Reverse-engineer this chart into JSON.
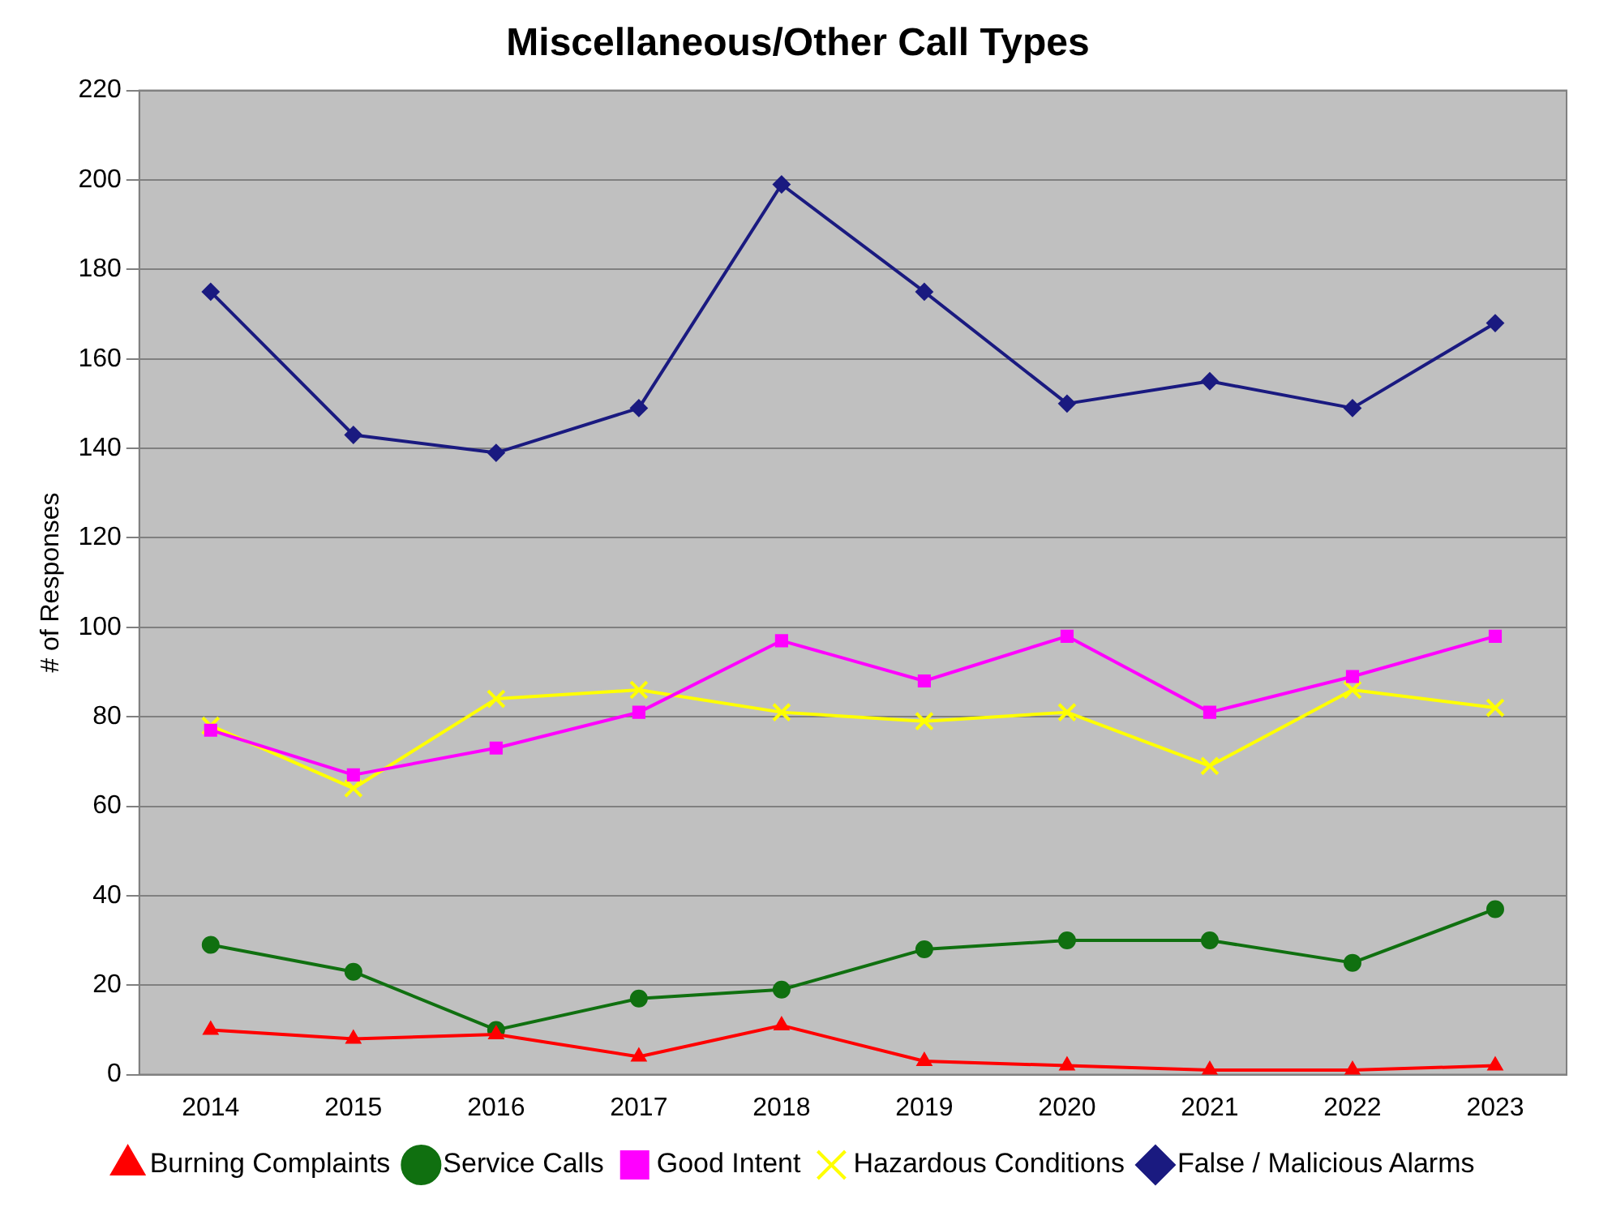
{
  "chart_data": {
    "type": "line",
    "title": "Miscellaneous/Other Call Types",
    "ylabel": "# of Responses",
    "categories": [
      "2014",
      "2015",
      "2016",
      "2017",
      "2018",
      "2019",
      "2020",
      "2021",
      "2022",
      "2023"
    ],
    "series": [
      {
        "name": "False / Malicious Alarms",
        "color": "#1a1a80",
        "marker": "diamond",
        "values": [
          175,
          143,
          139,
          149,
          199,
          175,
          150,
          155,
          149,
          168
        ]
      },
      {
        "name": "Hazardous Conditions",
        "color": "#ffff00",
        "marker": "cross",
        "values": [
          78,
          64,
          84,
          86,
          81,
          79,
          81,
          69,
          86,
          82
        ]
      },
      {
        "name": "Good Intent",
        "color": "#ff00ff",
        "marker": "square",
        "values": [
          77,
          67,
          73,
          81,
          97,
          88,
          98,
          81,
          89,
          98
        ]
      },
      {
        "name": "Service Calls",
        "color": "#107010",
        "marker": "circle",
        "values": [
          29,
          23,
          10,
          17,
          19,
          28,
          30,
          30,
          25,
          37
        ]
      },
      {
        "name": "Burning Complaints",
        "color": "#ff0000",
        "marker": "triangle",
        "values": [
          10,
          8,
          9,
          4,
          11,
          3,
          2,
          1,
          1,
          2
        ]
      }
    ],
    "ylim": [
      0,
      220
    ],
    "yticks": [
      0,
      20,
      40,
      60,
      80,
      100,
      120,
      140,
      160,
      180,
      200,
      220
    ],
    "grid": "y",
    "legend": "bottom",
    "line_style": "solid"
  }
}
